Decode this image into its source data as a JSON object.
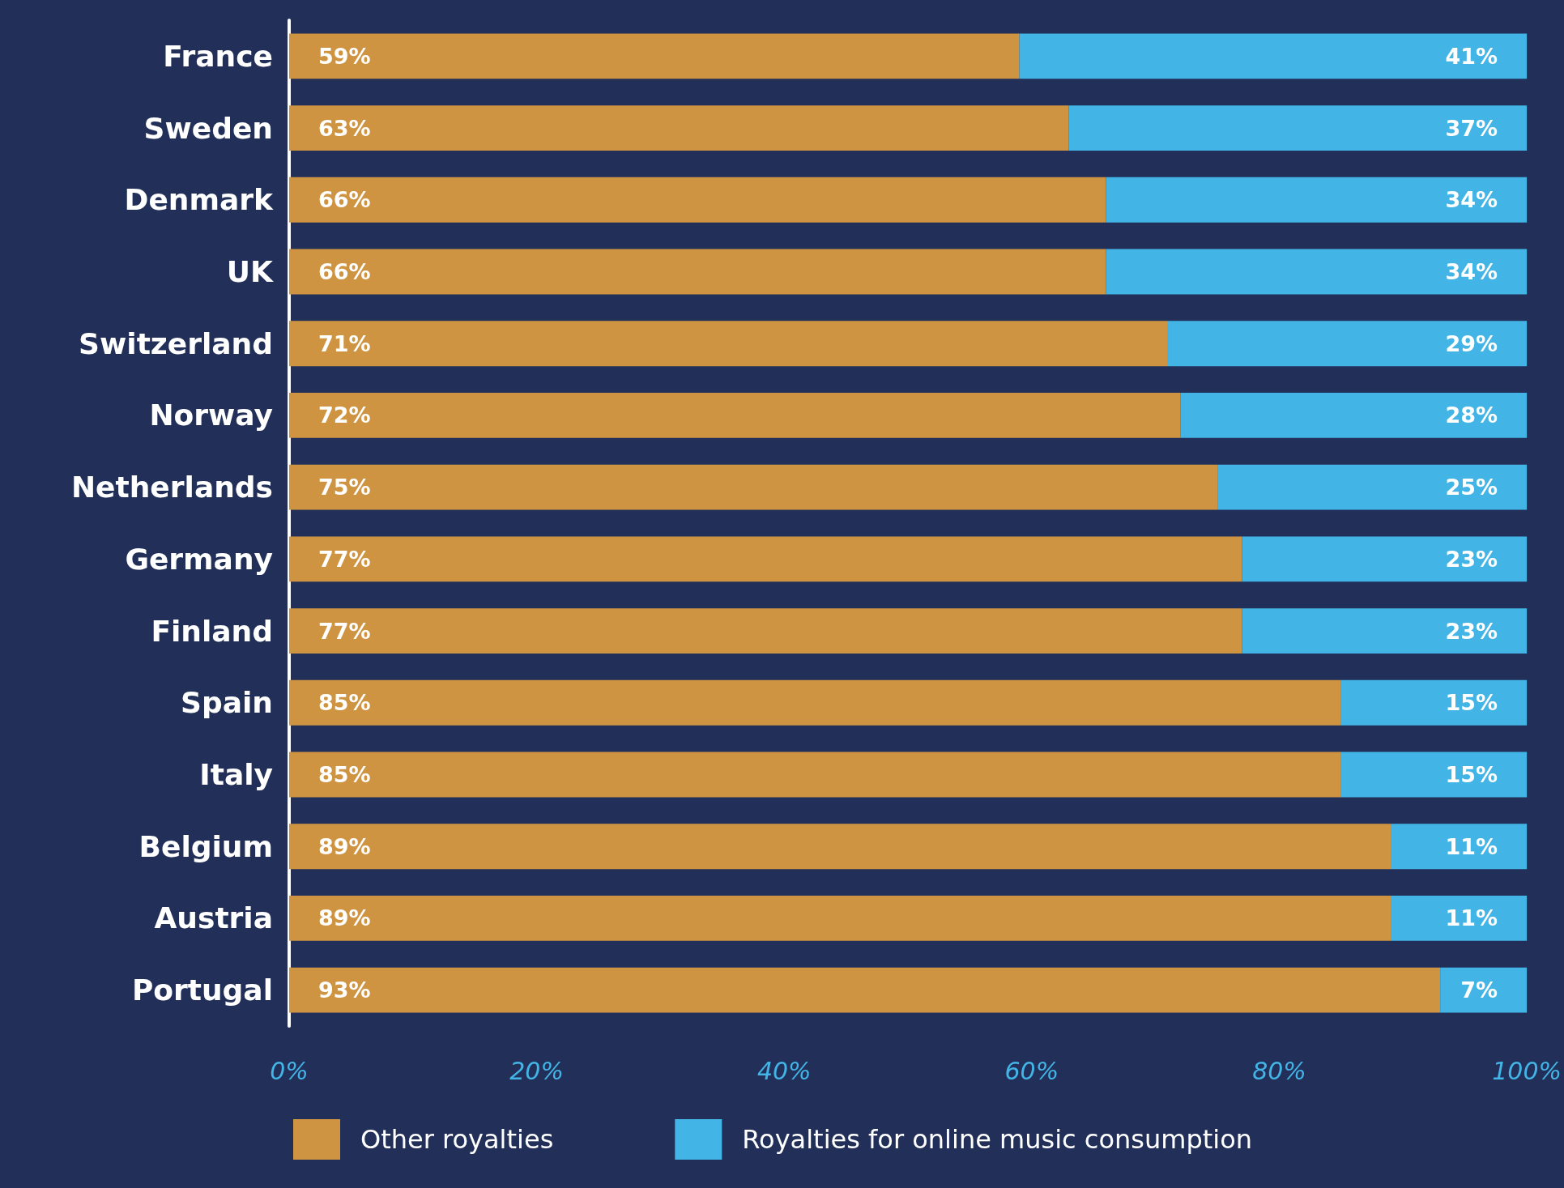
{
  "chart_data": {
    "type": "bar",
    "orientation": "horizontal",
    "stacked": true,
    "categories": [
      "France",
      "Sweden",
      "Denmark",
      "UK",
      "Switzerland",
      "Norway",
      "Netherlands",
      "Germany",
      "Finland",
      "Spain",
      "Italy",
      "Belgium",
      "Austria",
      "Portugal"
    ],
    "series": [
      {
        "name": "Other royalties",
        "color": "#cf9442",
        "values": [
          59,
          63,
          66,
          66,
          71,
          72,
          75,
          77,
          77,
          85,
          85,
          89,
          89,
          93
        ],
        "value_labels": [
          "59%",
          "63%",
          "66%",
          "66%",
          "71%",
          "72%",
          "75%",
          "77%",
          "77%",
          "85%",
          "85%",
          "89%",
          "89%",
          "93%"
        ]
      },
      {
        "name": "Royalties for online music consumption",
        "color": "#42b4e5",
        "values": [
          41,
          37,
          34,
          34,
          29,
          28,
          25,
          23,
          23,
          15,
          15,
          11,
          11,
          7
        ],
        "value_labels": [
          "41%",
          "37%",
          "34%",
          "34%",
          "29%",
          "28%",
          "25%",
          "23%",
          "23%",
          "15%",
          "15%",
          "11%",
          "11%",
          "7%"
        ]
      }
    ],
    "xlim": [
      0,
      100
    ],
    "xticks": [
      {
        "value": 0,
        "label": "0%"
      },
      {
        "value": 20,
        "label": "20%"
      },
      {
        "value": 40,
        "label": "40%"
      },
      {
        "value": 60,
        "label": "60%"
      },
      {
        "value": 80,
        "label": "80%"
      },
      {
        "value": 100,
        "label": "100%"
      }
    ],
    "grid": false,
    "legend": "bottom"
  }
}
